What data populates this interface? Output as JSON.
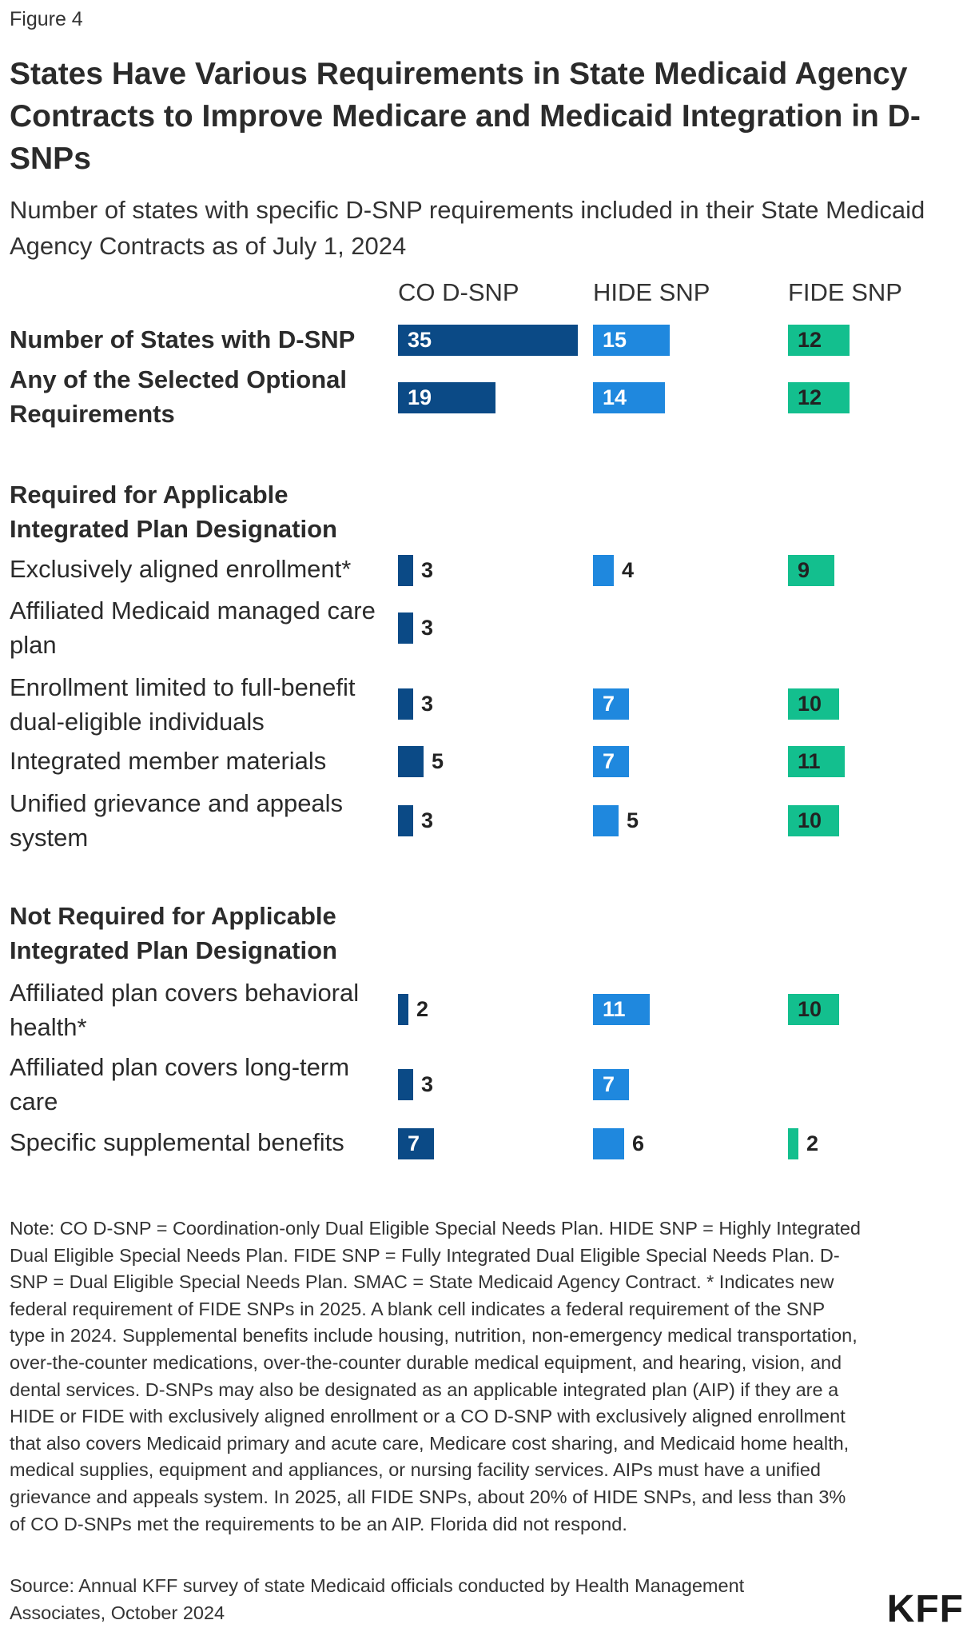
{
  "figure_label": "Figure 4",
  "colors": {
    "co": "#0b4a86",
    "hide": "#1f88de",
    "fide": "#13bf8e"
  },
  "logo": "KFF",
  "note": "Note: CO D-SNP = Coordination-only Dual Eligible Special Needs Plan. HIDE SNP = Highly Integrated Dual Eligible Special Needs Plan. FIDE SNP = Fully Integrated Dual Eligible Special Needs Plan. D-SNP = Dual Eligible Special Needs Plan. SMAC = State Medicaid Agency Contract. * Indicates new federal requirement of FIDE SNPs in 2025. A blank cell indicates a federal requirement of the SNP type in 2024. Supplemental benefits include housing, nutrition, non-emergency medical transportation, over-the-counter medications, over-the-counter durable medical equipment, and hearing, vision, and dental services. D-SNPs may also be designated as an applicable integrated plan (AIP) if they are a HIDE or FIDE with exclusively aligned enrollment or a CO D-SNP with exclusively aligned enrollment that also covers Medicaid primary and acute care, Medicare cost sharing, and Medicaid home health, medical supplies, equipment and appliances, or nursing facility services. AIPs must have a unified grievance and appeals system. In 2025, all FIDE SNPs, about 20% of HIDE SNPs, and less than 3% of CO D-SNPs met the requirements to be an AIP. Florida did not respond.",
  "source": "Source: Annual KFF survey of state Medicaid officials conducted by Health Management Associates, October 2024",
  "chart_data": {
    "type": "bar",
    "orientation": "horizontal",
    "title": "States Have Various Requirements in State Medicaid Agency Contracts to Improve Medicare and Medicaid Integration in D-SNPs",
    "subtitle": "Number of states with specific D-SNP requirements included in their State Medicaid Agency Contracts as of July 1, 2024",
    "series_names": [
      "CO D-SNP",
      "HIDE SNP",
      "FIDE SNP"
    ],
    "xlim": [
      0,
      35
    ],
    "sections": [
      "Required for Applicable Integrated Plan Designation",
      "Not Required for Applicable Integrated Plan Designation"
    ],
    "rows": [
      {
        "label": "Number of States with D-SNP",
        "bold": true,
        "values": [
          35,
          15,
          12
        ]
      },
      {
        "label": "Any of the Selected Optional Requirements",
        "bold": true,
        "values": [
          19,
          14,
          12
        ]
      },
      {
        "label": "Exclusively aligned enrollment*",
        "bold": false,
        "values": [
          3,
          4,
          9
        ]
      },
      {
        "label": "Affiliated Medicaid managed care plan",
        "bold": false,
        "values": [
          3,
          null,
          null
        ]
      },
      {
        "label": "Enrollment limited to full-benefit dual-eligible individuals",
        "bold": false,
        "values": [
          3,
          7,
          10
        ]
      },
      {
        "label": "Integrated member materials",
        "bold": false,
        "values": [
          5,
          7,
          11
        ]
      },
      {
        "label": "Unified grievance and appeals system",
        "bold": false,
        "values": [
          3,
          5,
          10
        ]
      },
      {
        "label": "Affiliated plan covers behavioral health*",
        "bold": false,
        "values": [
          2,
          11,
          10
        ]
      },
      {
        "label": "Affiliated plan covers long-term care",
        "bold": false,
        "values": [
          3,
          7,
          null
        ]
      },
      {
        "label": "Specific supplemental benefits",
        "bold": false,
        "values": [
          7,
          6,
          2
        ]
      }
    ]
  }
}
